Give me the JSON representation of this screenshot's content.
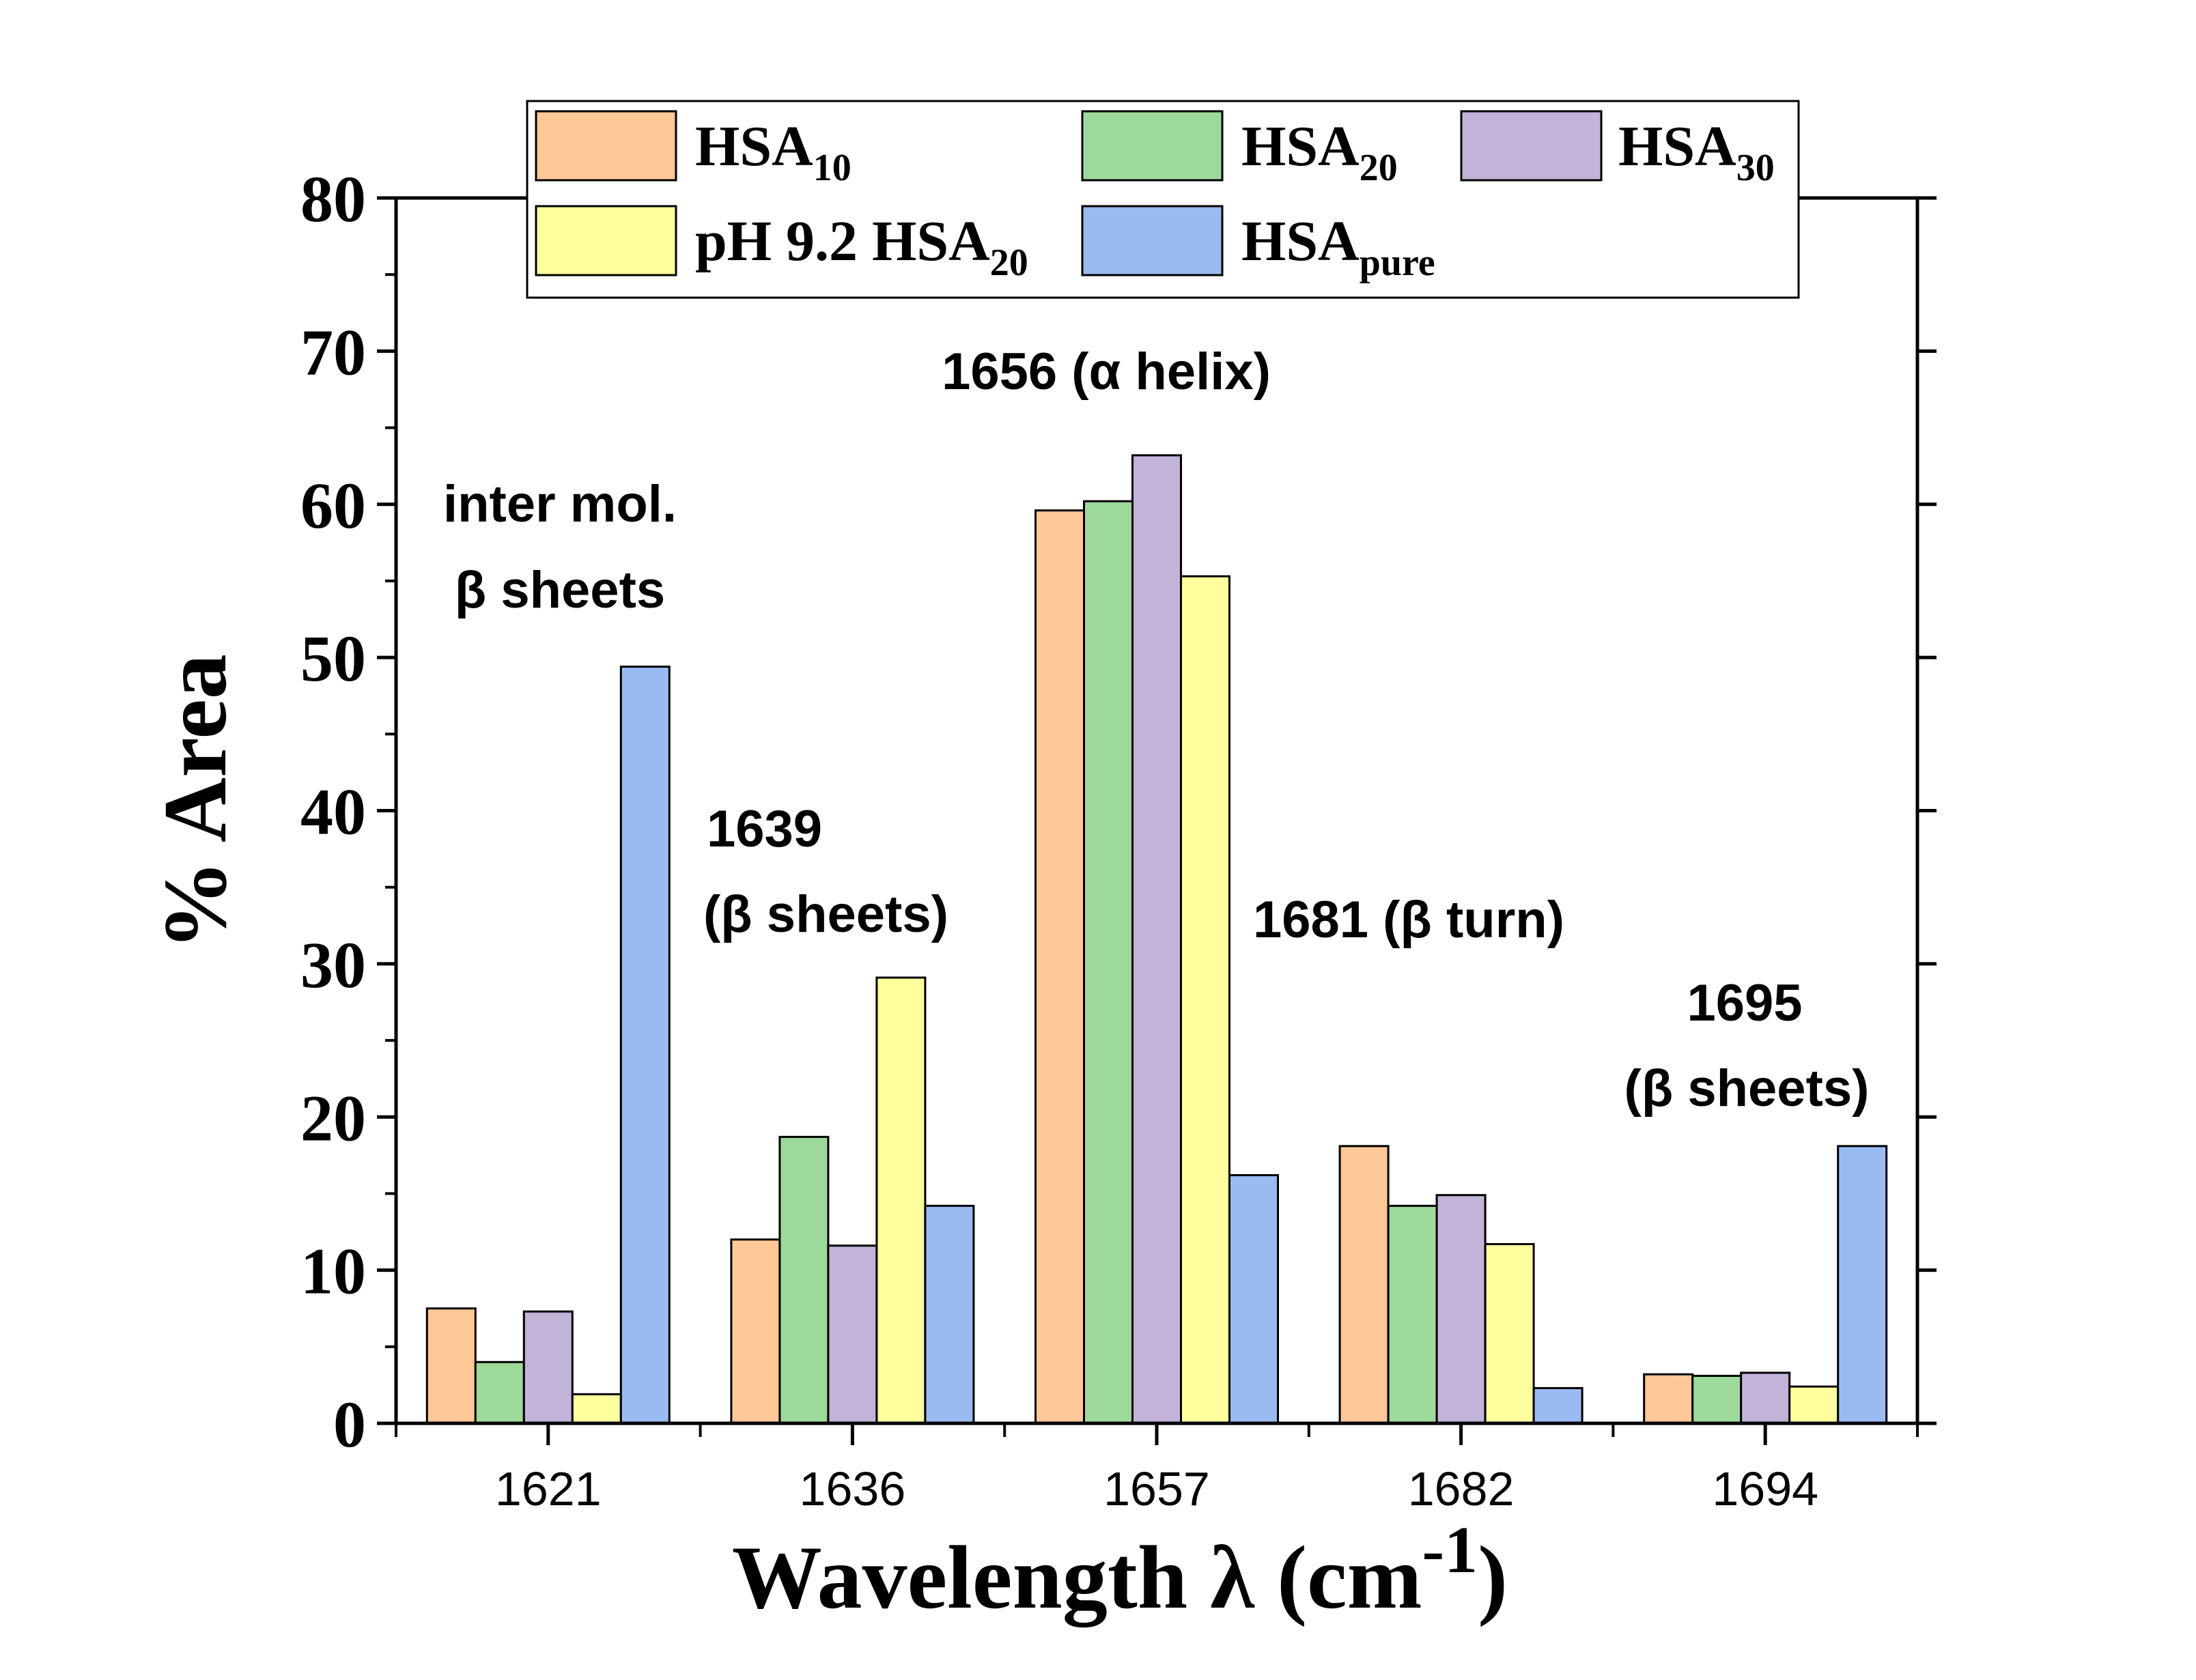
{
  "chart_data": {
    "type": "bar",
    "categories": [
      "1621",
      "1636",
      "1657",
      "1682",
      "1694"
    ],
    "series": [
      {
        "name": "HSA10",
        "label_main": "HSA",
        "label_sub": "10",
        "color": "#FFC896",
        "values": [
          7.5,
          12.0,
          59.6,
          18.1,
          3.2
        ]
      },
      {
        "name": "HSA20",
        "label_main": "HSA",
        "label_sub": "20",
        "color": "#9ED99C",
        "values": [
          4.0,
          18.7,
          60.2,
          14.2,
          3.1
        ]
      },
      {
        "name": "HSA30",
        "label_main": "HSA",
        "label_sub": "30",
        "color": "#C3B3D9",
        "values": [
          7.3,
          11.6,
          63.2,
          14.9,
          3.3
        ]
      },
      {
        "name": "pH 9.2 HSA20",
        "label_main": "pH 9.2 HSA",
        "label_sub": "20",
        "color": "#FFFF9E",
        "values": [
          1.9,
          29.1,
          55.3,
          11.7,
          2.4
        ]
      },
      {
        "name": "HSApure",
        "label_main": "HSA",
        "label_sub": "pure",
        "color": "#9ABAF2",
        "values": [
          49.4,
          14.2,
          16.2,
          2.3,
          18.1
        ]
      }
    ],
    "xlabel": {
      "main": "Wavelength λ (cm",
      "sup": "-1",
      "close": ")"
    },
    "ylabel": "% Area",
    "ylim": [
      0,
      80
    ],
    "yticks": [
      "0",
      "10",
      "20",
      "30",
      "40",
      "50",
      "60",
      "70",
      "80"
    ],
    "legend_position": "top",
    "annotations": {
      "a1621_line1": "inter mol.",
      "a1621_line2": "β sheets",
      "a1639_line1": "1639",
      "a1639_line2": "(β sheets)",
      "a1656": "1656 (α helix)",
      "a1681": "1681 (β turn)",
      "a1695_line1": "1695",
      "a1695_line2": "(β sheets)"
    }
  }
}
